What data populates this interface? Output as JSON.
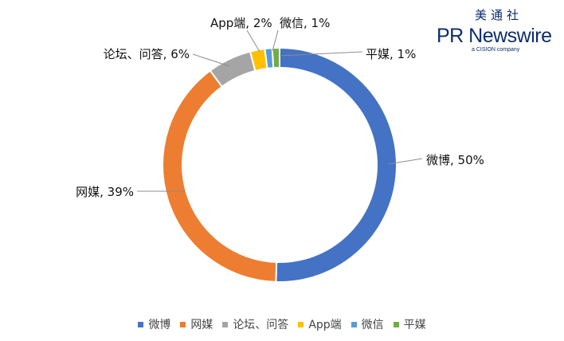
{
  "logo": {
    "chinese": "美通社",
    "name": "PR Newswire",
    "tagline": "a CISION company"
  },
  "chart_data": {
    "type": "pie",
    "donut": true,
    "start_angle_deg": 0,
    "direction": "clockwise",
    "legend_position": "bottom",
    "slices": [
      {
        "name": "微博",
        "value": 50,
        "label": "微博, 50%",
        "color": "#4472c4"
      },
      {
        "name": "网媒",
        "value": 39,
        "label": "网媒, 39%",
        "color": "#ed7d31"
      },
      {
        "name": "论坛、问答",
        "value": 6,
        "label": "论坛、问答, 6%",
        "color": "#a5a5a5"
      },
      {
        "name": "App端",
        "value": 2,
        "label": "App端, 2%",
        "color": "#ffc000"
      },
      {
        "name": "微信",
        "value": 1,
        "label": "微信, 1%",
        "color": "#5b9bd5"
      },
      {
        "name": "平媒",
        "value": 1,
        "label": "平媒, 1%",
        "color": "#70ad47"
      }
    ]
  }
}
